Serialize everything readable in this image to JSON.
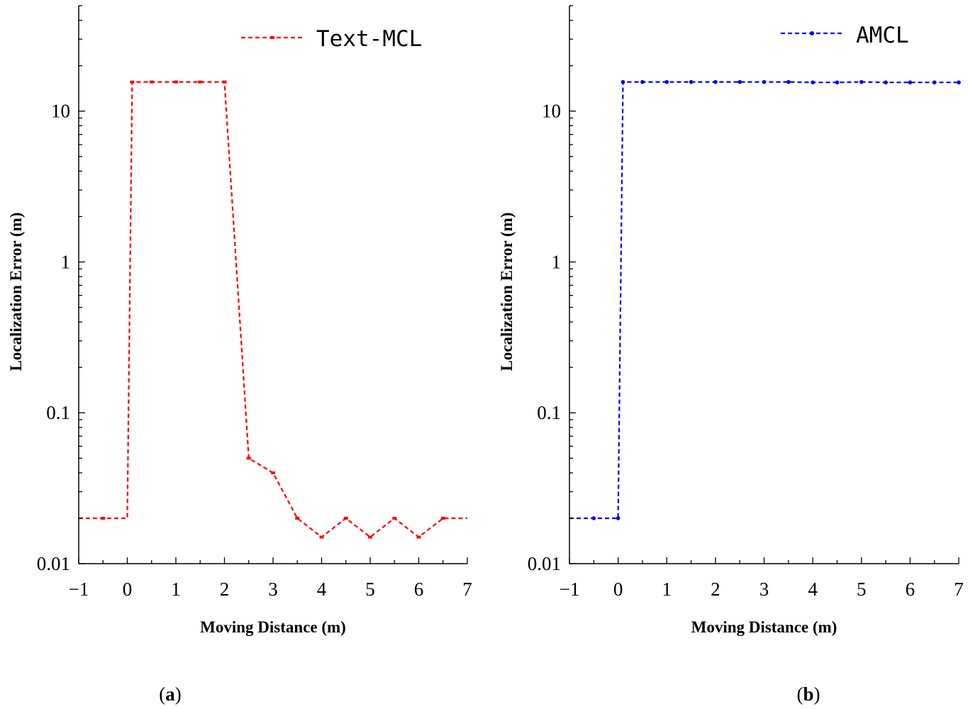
{
  "chart_data": [
    {
      "panel": "a",
      "type": "line",
      "xlabel": "Moving Distance (m)",
      "ylabel": "Localization Error (m)",
      "xlim": [
        -1,
        7
      ],
      "xticks": [
        -1,
        0,
        1,
        2,
        3,
        4,
        5,
        6,
        7
      ],
      "xtick_labels": [
        "−1",
        "0",
        "1",
        "2",
        "3",
        "4",
        "5",
        "6",
        "7"
      ],
      "yscale": "log",
      "ylim": [
        0.01,
        50
      ],
      "yticks": [
        0.01,
        0.1,
        1,
        10
      ],
      "ytick_labels": [
        "0.01",
        "0.1",
        "1",
        "10"
      ],
      "legend": "top-right",
      "series": [
        {
          "name": "Text-MCL",
          "color": "#ff0000",
          "x": [
            -1,
            -0.5,
            0,
            0.1,
            0.5,
            1,
            1.5,
            2,
            2.5,
            3,
            3.5,
            4,
            4.5,
            5,
            5.5,
            6,
            6.5,
            7
          ],
          "y": [
            0.02,
            0.02,
            0.02,
            15.6,
            15.6,
            15.6,
            15.6,
            15.6,
            0.05,
            0.04,
            0.02,
            0.015,
            0.02,
            0.015,
            0.02,
            0.015,
            0.02,
            0.02
          ],
          "markers": [
            false,
            true,
            false,
            true,
            true,
            true,
            true,
            true,
            true,
            true,
            true,
            true,
            true,
            true,
            true,
            true,
            true,
            false
          ]
        }
      ]
    },
    {
      "panel": "b",
      "type": "line",
      "xlabel": "Moving Distance (m)",
      "ylabel": "Localization Error (m)",
      "xlim": [
        -1,
        7
      ],
      "xticks": [
        -1,
        0,
        1,
        2,
        3,
        4,
        5,
        6,
        7
      ],
      "xtick_labels": [
        "−1",
        "0",
        "1",
        "2",
        "3",
        "4",
        "5",
        "6",
        "7"
      ],
      "yscale": "log",
      "ylim": [
        0.01,
        50
      ],
      "yticks": [
        0.01,
        0.1,
        1,
        10
      ],
      "ytick_labels": [
        "0.01",
        "0.1",
        "1",
        "10"
      ],
      "legend": "top-right",
      "series": [
        {
          "name": "AMCL",
          "color": "#0000ff",
          "x": [
            -1,
            -0.5,
            0,
            0.1,
            0.5,
            1,
            1.5,
            2,
            2.5,
            3,
            3.5,
            4,
            4.5,
            5,
            5.5,
            6,
            6.5,
            7
          ],
          "y": [
            0.02,
            0.02,
            0.02,
            15.6,
            15.6,
            15.6,
            15.6,
            15.6,
            15.6,
            15.6,
            15.6,
            15.5,
            15.5,
            15.6,
            15.5,
            15.5,
            15.5,
            15.5
          ],
          "markers": [
            false,
            true,
            true,
            true,
            true,
            true,
            true,
            true,
            true,
            true,
            true,
            true,
            true,
            true,
            true,
            true,
            true,
            true
          ]
        }
      ]
    }
  ],
  "captions": [
    {
      "open": "(",
      "letter": "a",
      "close": ")"
    },
    {
      "open": "(",
      "letter": "b",
      "close": ")"
    }
  ]
}
